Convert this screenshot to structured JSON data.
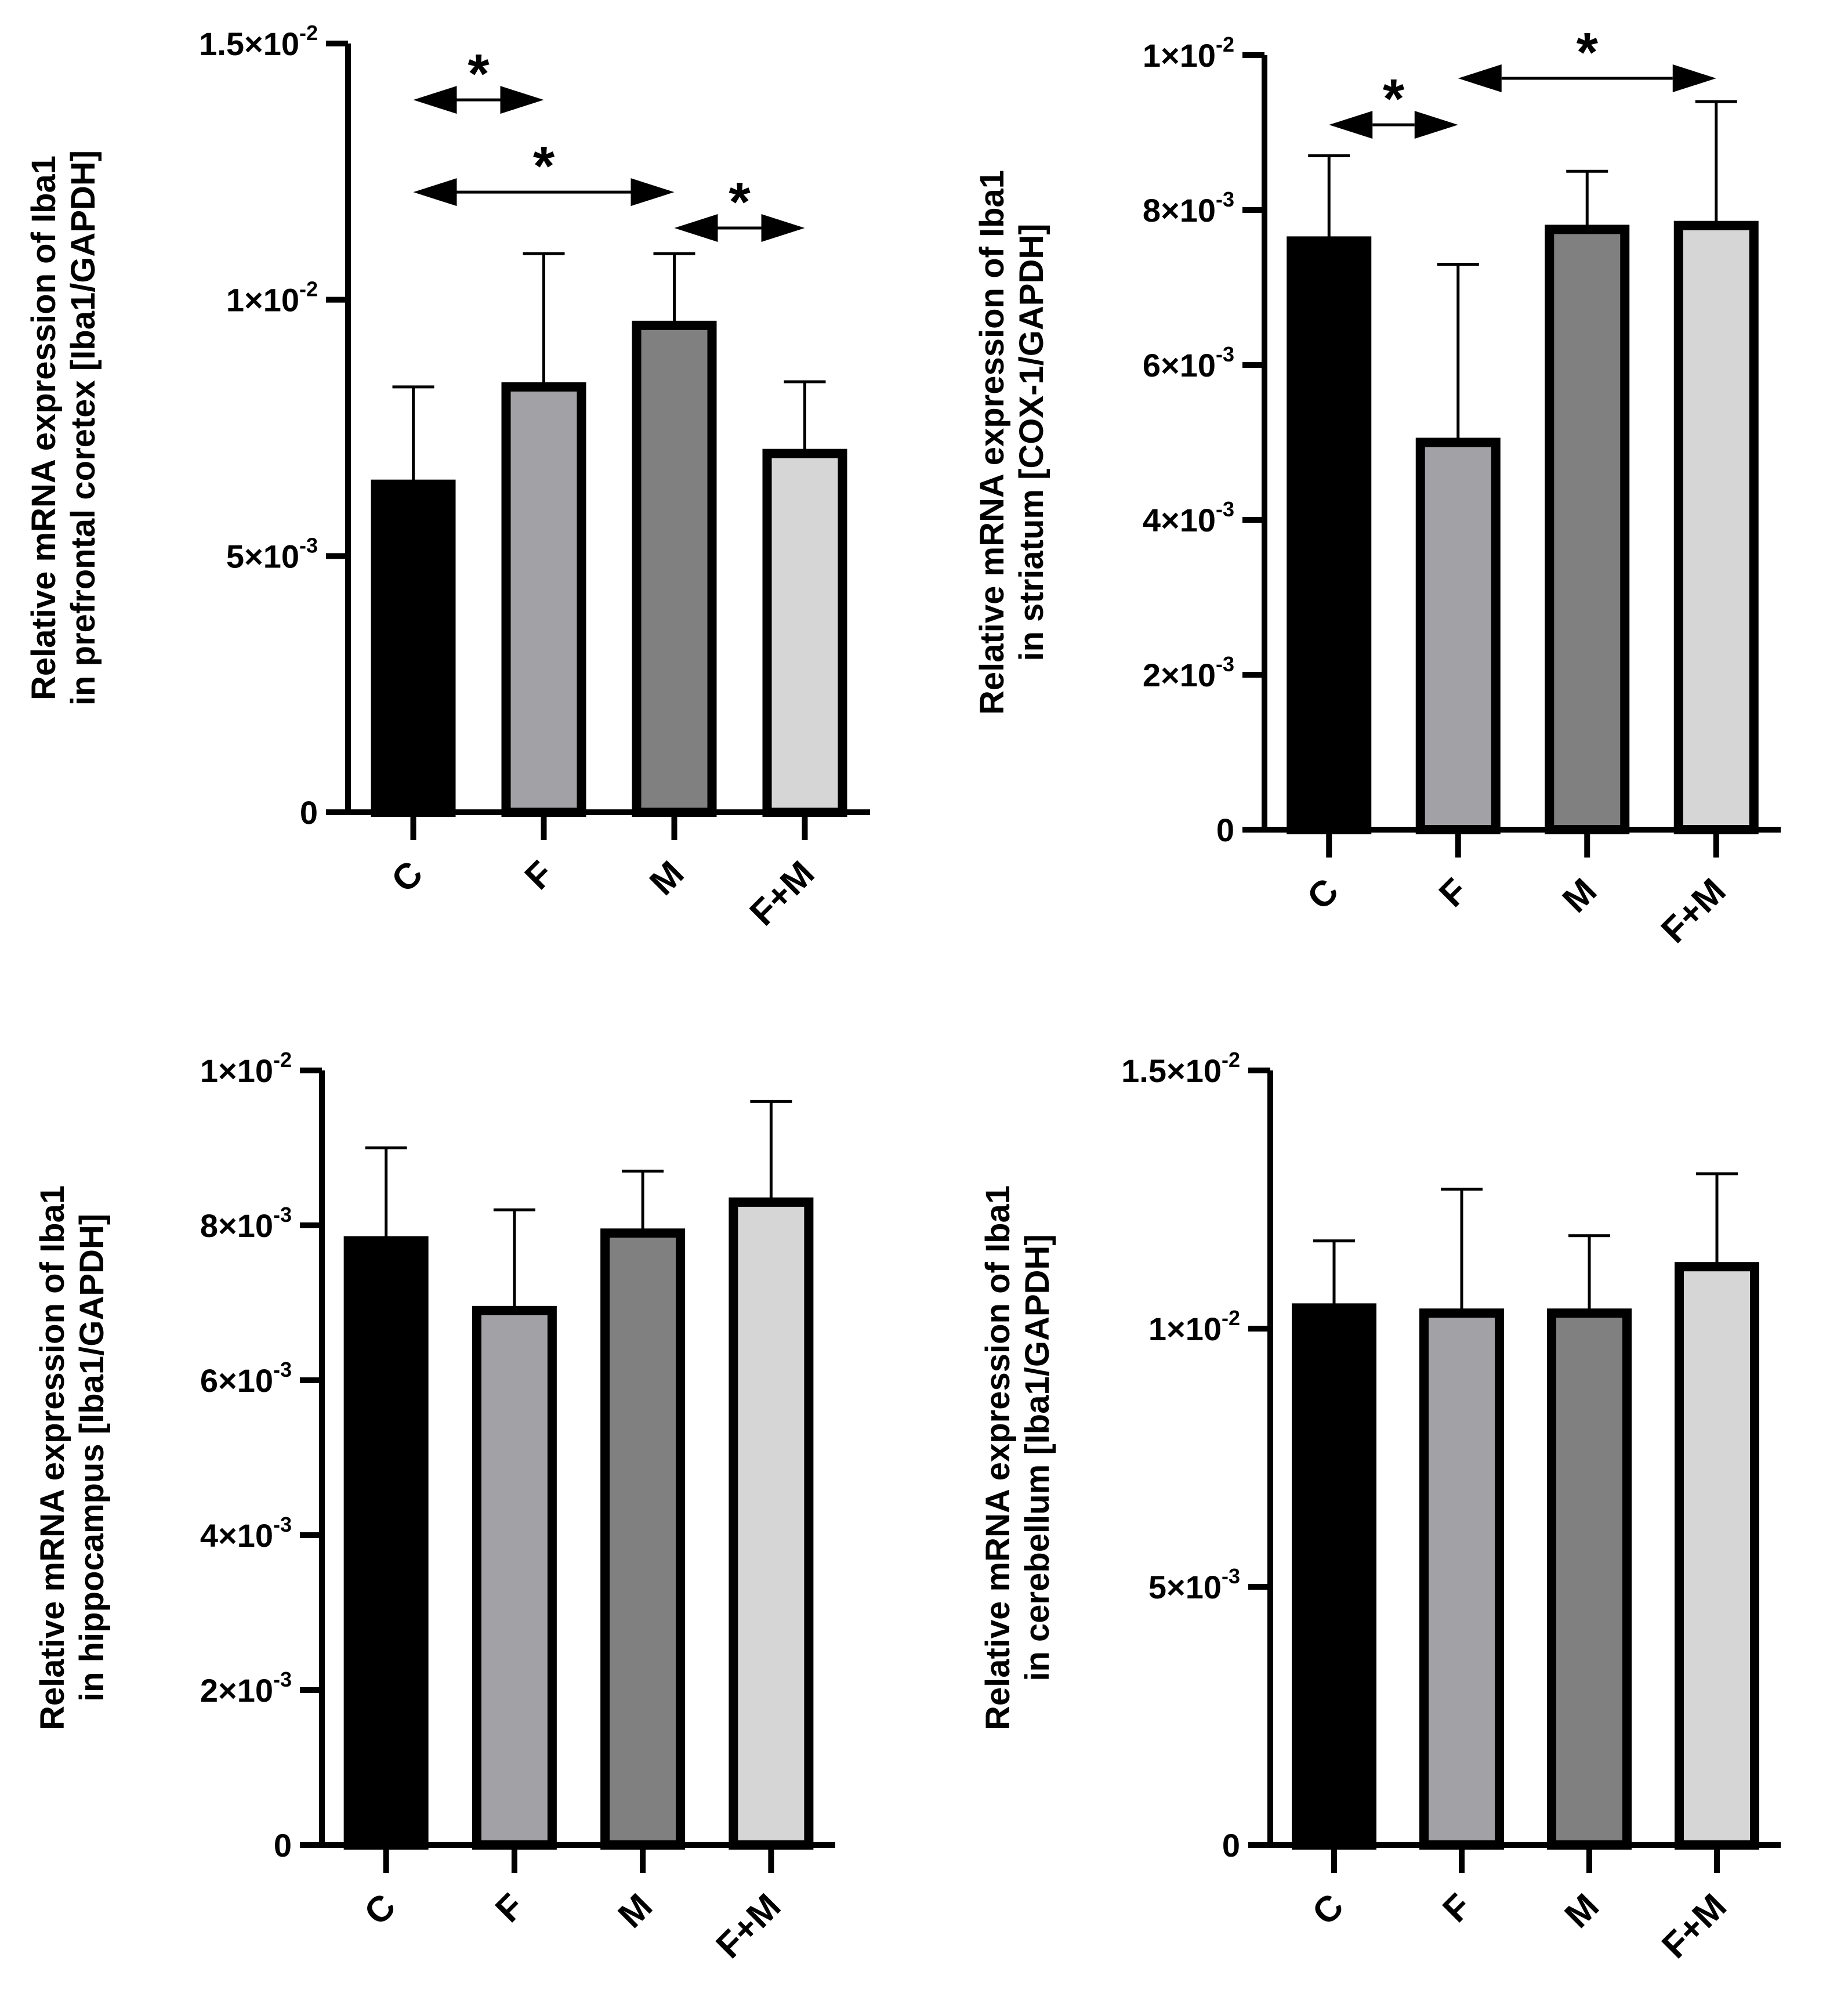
{
  "chart_data": [
    {
      "type": "bar",
      "ylabel_lines": [
        "Relative mRNA expression of Iba1",
        "in prefrontal coretex [Iba1/GAPDH]"
      ],
      "categories": [
        "C",
        "F",
        "M",
        "F+M"
      ],
      "values": [
        0.0064,
        0.0083,
        0.0095,
        0.007
      ],
      "errors": [
        0.0019,
        0.0026,
        0.0014,
        0.0014
      ],
      "ylim": [
        0,
        0.015
      ],
      "yticks": [
        {
          "value": 0,
          "mantissa": "0",
          "exponent": ""
        },
        {
          "value": 0.005,
          "mantissa": "5×10",
          "exponent": "-3"
        },
        {
          "value": 0.01,
          "mantissa": "1×10",
          "exponent": "-2"
        },
        {
          "value": 0.015,
          "mantissa": "1.5×10",
          "exponent": "-2"
        }
      ],
      "colors": [
        "#000000",
        "#a2a1a6",
        "#808080",
        "#d6d6d6"
      ],
      "significance": [
        {
          "from": "C",
          "to": "F",
          "label": "*",
          "level": 0.0139
        },
        {
          "from": "C",
          "to": "M",
          "label": "*",
          "level": 0.0121
        },
        {
          "from": "M",
          "to": "F+M",
          "label": "*",
          "level": 0.0114
        }
      ]
    },
    {
      "type": "bar",
      "ylabel_lines": [
        "Relative mRNA expression of Iba1",
        "in striatum [COX-1/GAPDH]"
      ],
      "categories": [
        "C",
        "F",
        "M",
        "F+M"
      ],
      "values": [
        0.0076,
        0.005,
        0.00775,
        0.0078
      ],
      "errors": [
        0.0011,
        0.0023,
        0.00075,
        0.0016
      ],
      "ylim": [
        0,
        0.01
      ],
      "yticks": [
        {
          "value": 0,
          "mantissa": "0",
          "exponent": ""
        },
        {
          "value": 0.002,
          "mantissa": "2×10",
          "exponent": "-3"
        },
        {
          "value": 0.004,
          "mantissa": "4×10",
          "exponent": "-3"
        },
        {
          "value": 0.006,
          "mantissa": "6×10",
          "exponent": "-3"
        },
        {
          "value": 0.008,
          "mantissa": "8×10",
          "exponent": "-3"
        },
        {
          "value": 0.01,
          "mantissa": "1×10",
          "exponent": "-2"
        }
      ],
      "colors": [
        "#000000",
        "#a2a1a6",
        "#808080",
        "#d6d6d6"
      ],
      "significance": [
        {
          "from": "C",
          "to": "F",
          "label": "*",
          "level": 0.0091
        },
        {
          "from": "F",
          "to": "F+M",
          "label": "*",
          "level": 0.0097
        }
      ]
    },
    {
      "type": "bar",
      "ylabel_lines": [
        "Relative mRNA expression of Iba1",
        "in hippocampus [Iba1/GAPDH]"
      ],
      "categories": [
        "C",
        "F",
        "M",
        "F+M"
      ],
      "values": [
        0.0078,
        0.0069,
        0.0079,
        0.0083
      ],
      "errors": [
        0.0012,
        0.0013,
        0.0008,
        0.0013
      ],
      "ylim": [
        0,
        0.01
      ],
      "yticks": [
        {
          "value": 0,
          "mantissa": "0",
          "exponent": ""
        },
        {
          "value": 0.002,
          "mantissa": "2×10",
          "exponent": "-3"
        },
        {
          "value": 0.004,
          "mantissa": "4×10",
          "exponent": "-3"
        },
        {
          "value": 0.006,
          "mantissa": "6×10",
          "exponent": "-3"
        },
        {
          "value": 0.008,
          "mantissa": "8×10",
          "exponent": "-3"
        },
        {
          "value": 0.01,
          "mantissa": "1×10",
          "exponent": "-2"
        }
      ],
      "colors": [
        "#000000",
        "#a2a1a6",
        "#808080",
        "#d6d6d6"
      ],
      "significance": []
    },
    {
      "type": "bar",
      "ylabel_lines": [
        "Relative mRNA expression of Iba1",
        "in cerebellum [Iba1/GAPDH]"
      ],
      "categories": [
        "C",
        "F",
        "M",
        "F+M"
      ],
      "values": [
        0.0104,
        0.0103,
        0.0103,
        0.0112
      ],
      "errors": [
        0.0013,
        0.0024,
        0.0015,
        0.0018
      ],
      "ylim": [
        0,
        0.015
      ],
      "yticks": [
        {
          "value": 0,
          "mantissa": "0",
          "exponent": ""
        },
        {
          "value": 0.005,
          "mantissa": "5×10",
          "exponent": "-3"
        },
        {
          "value": 0.01,
          "mantissa": "1×10",
          "exponent": "-2"
        },
        {
          "value": 0.015,
          "mantissa": "1.5×10",
          "exponent": "-2"
        }
      ],
      "colors": [
        "#000000",
        "#a2a1a6",
        "#808080",
        "#d6d6d6"
      ],
      "significance": []
    }
  ]
}
